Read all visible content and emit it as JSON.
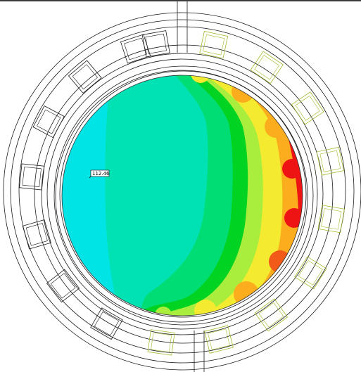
{
  "probe": {
    "value": "112.46"
  },
  "colors": {
    "cyan": "#00e4e6",
    "teal": "#00e2b4",
    "green": "#00dd74",
    "bright_green": "#00d321",
    "yellow_green": "#a9ee3c",
    "yellow": "#f4ea2f",
    "orange": "#fbad1d",
    "red": "#ee1414",
    "wireframe_dark": "#1a1a1a",
    "wireframe_olive": "#a5b82a"
  },
  "icons": {
    "probe_marker": "probe-pointer"
  }
}
